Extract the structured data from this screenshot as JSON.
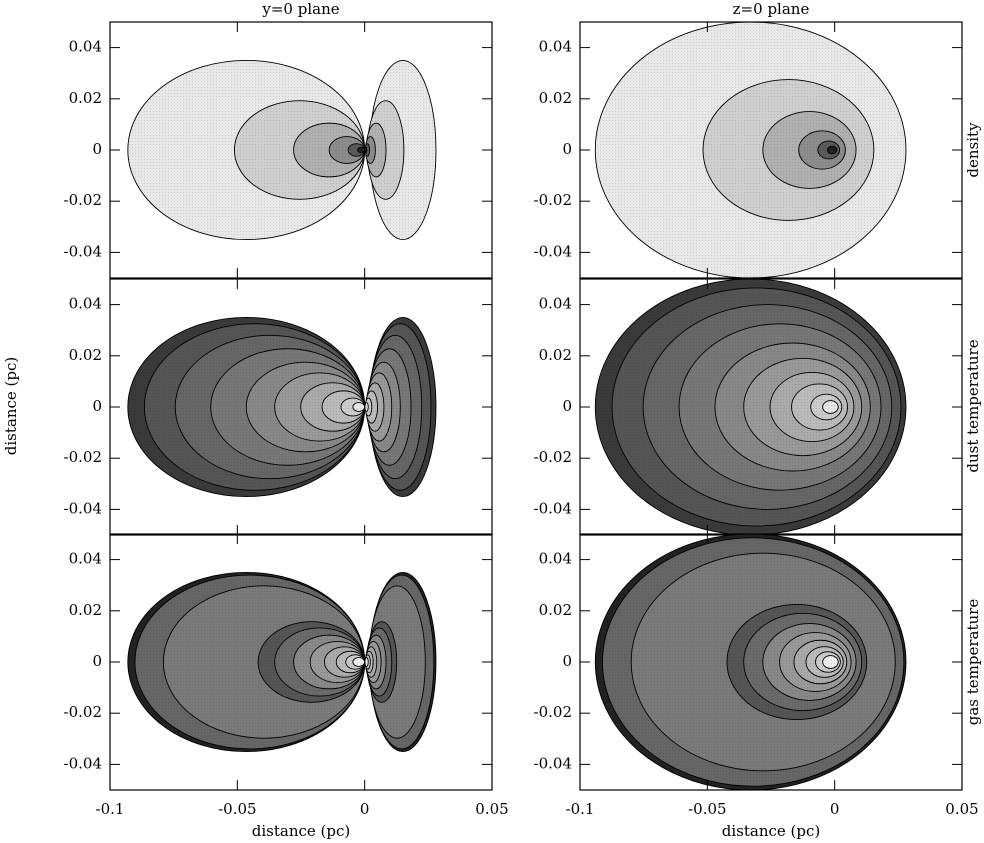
{
  "chart_data": {
    "type": "contour",
    "columns": [
      "y=0 plane",
      "z=0 plane"
    ],
    "rows": [
      "density",
      "dust temperature",
      "gas temperature"
    ],
    "xlabel": "distance (pc)",
    "ylabel": "distance (pc)",
    "xlim": [
      -0.1,
      0.05
    ],
    "xticks": [
      -0.1,
      -0.05,
      0,
      0.05
    ],
    "ylim": [
      -0.05,
      0.05
    ],
    "yticks": [
      -0.04,
      -0.02,
      0,
      0.02,
      0.04
    ]
  }
}
